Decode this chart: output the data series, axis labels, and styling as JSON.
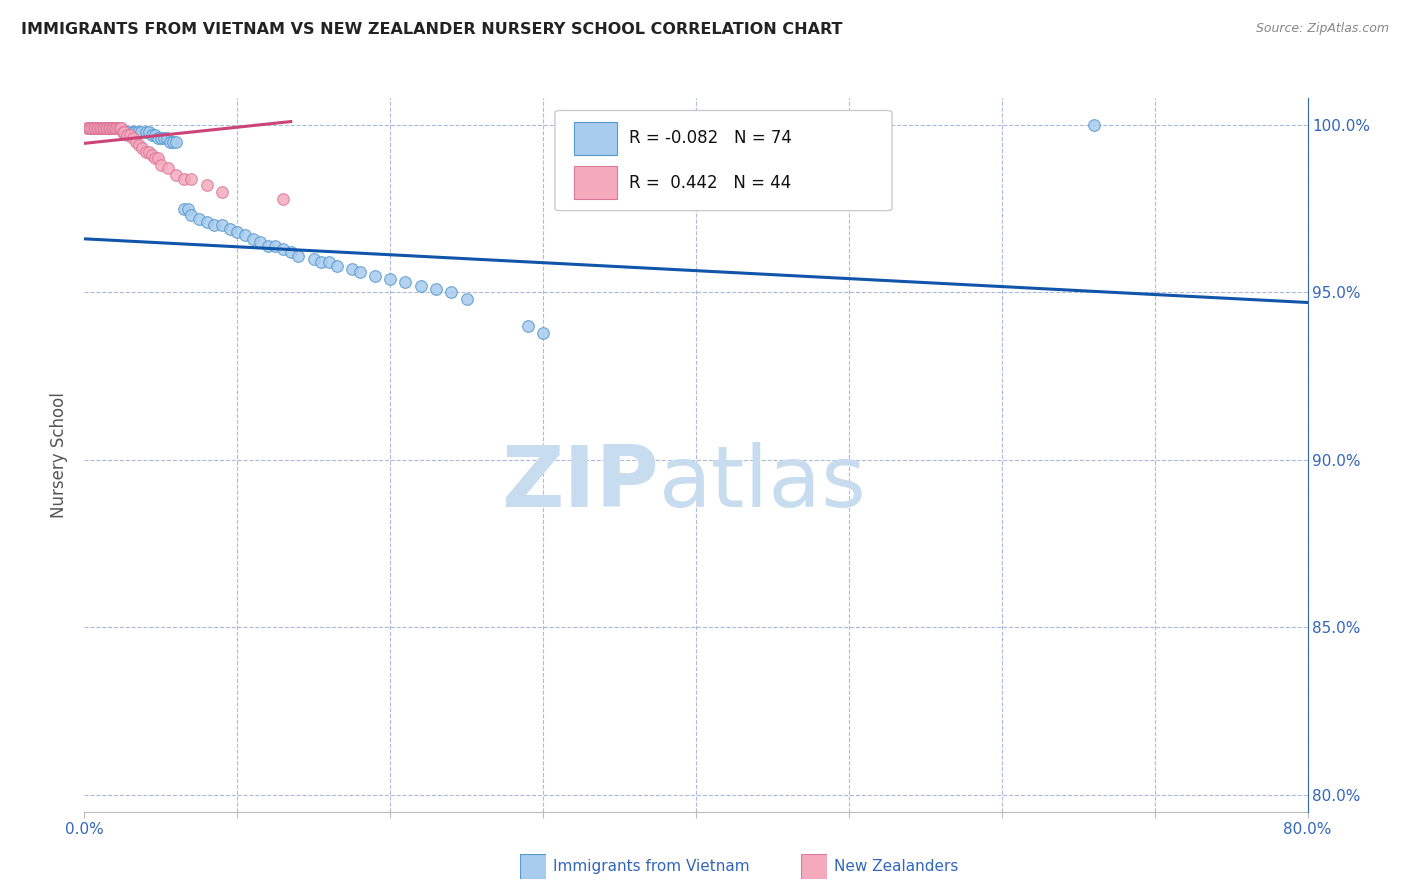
{
  "title": "IMMIGRANTS FROM VIETNAM VS NEW ZEALANDER NURSERY SCHOOL CORRELATION CHART",
  "source": "Source: ZipAtlas.com",
  "ylabel": "Nursery School",
  "legend_blue_label": "Immigrants from Vietnam",
  "legend_pink_label": "New Zealanders",
  "xmin": 0.0,
  "xmax": 0.8,
  "ymin": 0.795,
  "ymax": 1.008,
  "ytick_positions": [
    0.8,
    0.85,
    0.9,
    0.95,
    1.0
  ],
  "ytick_labels": [
    "80.0%",
    "85.0%",
    "90.0%",
    "95.0%",
    "100.0%"
  ],
  "xtick_positions": [
    0.0,
    0.1,
    0.2,
    0.3,
    0.4,
    0.5,
    0.6,
    0.7,
    0.8
  ],
  "xtick_labels": [
    "0.0%",
    "",
    "",
    "",
    "",
    "",
    "",
    "",
    "80.0%"
  ],
  "blue_scatter_x": [
    0.003,
    0.005,
    0.006,
    0.007,
    0.008,
    0.009,
    0.01,
    0.011,
    0.012,
    0.013,
    0.014,
    0.015,
    0.016,
    0.017,
    0.018,
    0.019,
    0.02,
    0.021,
    0.022,
    0.023,
    0.024,
    0.025,
    0.026,
    0.027,
    0.03,
    0.032,
    0.033,
    0.035,
    0.037,
    0.04,
    0.042,
    0.044,
    0.046,
    0.048,
    0.05,
    0.052,
    0.054,
    0.056,
    0.058,
    0.06,
    0.065,
    0.068,
    0.07,
    0.075,
    0.08,
    0.085,
    0.09,
    0.095,
    0.1,
    0.105,
    0.11,
    0.115,
    0.12,
    0.125,
    0.13,
    0.135,
    0.14,
    0.15,
    0.155,
    0.16,
    0.165,
    0.175,
    0.18,
    0.19,
    0.2,
    0.21,
    0.22,
    0.23,
    0.24,
    0.25,
    0.29,
    0.3,
    0.66
  ],
  "blue_scatter_y": [
    0.999,
    0.999,
    0.999,
    0.999,
    0.999,
    0.999,
    0.999,
    0.999,
    0.999,
    0.999,
    0.999,
    0.999,
    0.999,
    0.999,
    0.999,
    0.999,
    0.999,
    0.999,
    0.999,
    0.999,
    0.999,
    0.998,
    0.998,
    0.998,
    0.998,
    0.998,
    0.998,
    0.998,
    0.998,
    0.998,
    0.998,
    0.997,
    0.997,
    0.996,
    0.996,
    0.996,
    0.996,
    0.995,
    0.995,
    0.995,
    0.975,
    0.975,
    0.973,
    0.972,
    0.971,
    0.97,
    0.97,
    0.969,
    0.968,
    0.967,
    0.966,
    0.965,
    0.964,
    0.964,
    0.963,
    0.962,
    0.961,
    0.96,
    0.959,
    0.959,
    0.958,
    0.957,
    0.956,
    0.955,
    0.954,
    0.953,
    0.952,
    0.951,
    0.95,
    0.948,
    0.94,
    0.938,
    1.0
  ],
  "pink_scatter_x": [
    0.002,
    0.003,
    0.004,
    0.005,
    0.006,
    0.007,
    0.008,
    0.009,
    0.01,
    0.011,
    0.012,
    0.013,
    0.014,
    0.015,
    0.016,
    0.017,
    0.018,
    0.019,
    0.02,
    0.021,
    0.022,
    0.023,
    0.024,
    0.025,
    0.026,
    0.028,
    0.03,
    0.032,
    0.034,
    0.036,
    0.038,
    0.04,
    0.042,
    0.044,
    0.046,
    0.048,
    0.05,
    0.055,
    0.06,
    0.065,
    0.07,
    0.08,
    0.09,
    0.13
  ],
  "pink_scatter_y": [
    0.999,
    0.999,
    0.999,
    0.999,
    0.999,
    0.999,
    0.999,
    0.999,
    0.999,
    0.999,
    0.999,
    0.999,
    0.999,
    0.999,
    0.999,
    0.999,
    0.999,
    0.999,
    0.999,
    0.999,
    0.999,
    0.999,
    0.999,
    0.998,
    0.998,
    0.997,
    0.997,
    0.996,
    0.995,
    0.994,
    0.993,
    0.992,
    0.992,
    0.991,
    0.99,
    0.99,
    0.988,
    0.987,
    0.985,
    0.984,
    0.984,
    0.982,
    0.98,
    0.978
  ],
  "blue_line_x": [
    0.0,
    0.8
  ],
  "blue_line_y": [
    0.966,
    0.947
  ],
  "pink_line_x": [
    0.0,
    0.135
  ],
  "pink_line_y": [
    0.9945,
    1.001
  ],
  "blue_color": "#A8CCEE",
  "blue_edge_color": "#5599CC",
  "pink_color": "#F4AABC",
  "pink_edge_color": "#DD7799",
  "trendline_color": "#1155AA",
  "pink_trendline_color": "#CC4477",
  "axis_color": "#3366BB",
  "grid_color": "#AABBDD",
  "title_color": "#222222",
  "source_color": "#888888",
  "watermark_color": "#C8DCEF",
  "marker_size": 70
}
